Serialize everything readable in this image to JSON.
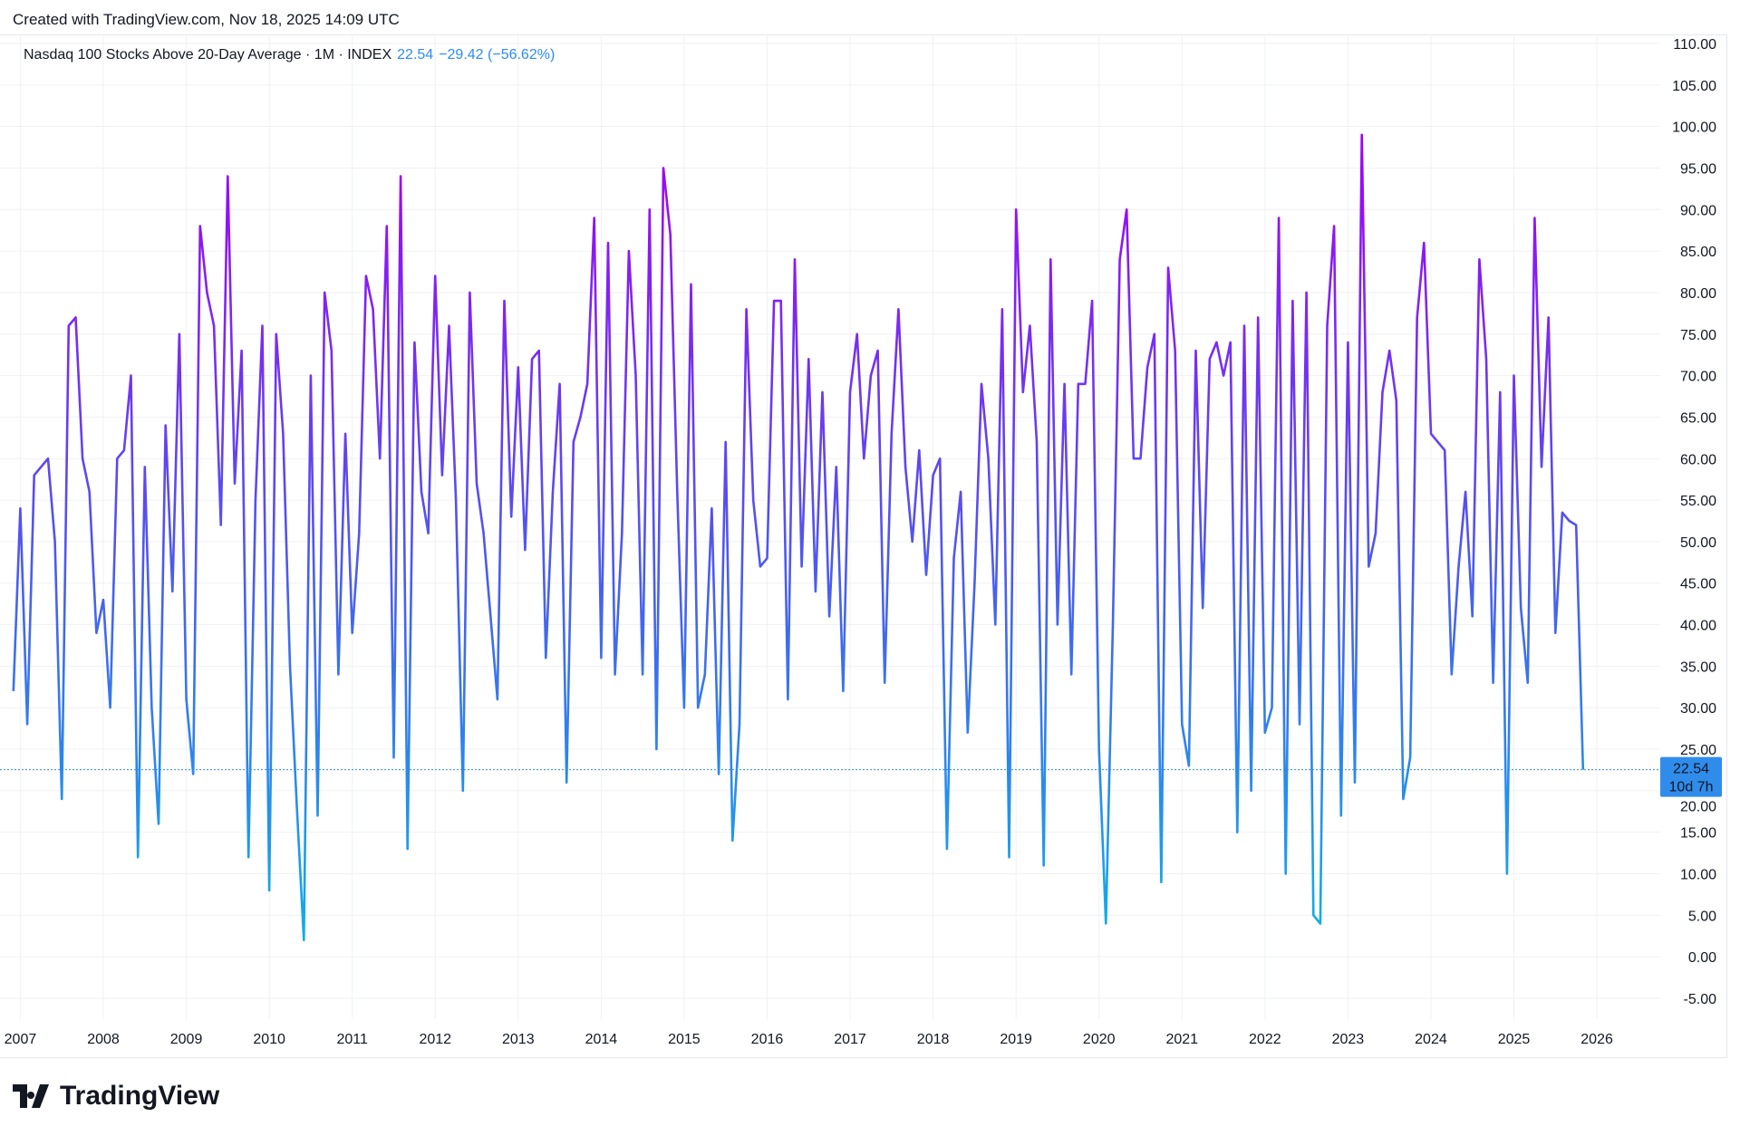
{
  "header": {
    "created": "Created with TradingView.com, Nov 18, 2025 14:09 UTC"
  },
  "legend": {
    "title": "Nasdaq 100 Stocks Above 20-Day Average · 1M · INDEX",
    "last": "22.54",
    "change": "−29.42 (−56.62%)"
  },
  "price_label": {
    "value": "22.54",
    "countdown": "10d 7h"
  },
  "logo": {
    "text": "TradingView"
  },
  "colors": {
    "top": "#a300f5",
    "mid": "#4a5cf0",
    "bottom": "#0fb0e8",
    "label_bg": "#2f8ceb",
    "grid": "#f0f1f4"
  },
  "chart_data": {
    "type": "line",
    "title": "Nasdaq 100 Stocks Above 20-Day Average · 1M · INDEX",
    "xlabel": "",
    "ylabel": "",
    "start_month": "2006-12",
    "interval": "1M",
    "ylim": [
      -5,
      110
    ],
    "yticks": [
      "-5.00",
      "0.00",
      "5.00",
      "10.00",
      "15.00",
      "20.00",
      "25.00",
      "30.00",
      "35.00",
      "40.00",
      "45.00",
      "50.00",
      "55.00",
      "60.00",
      "65.00",
      "70.00",
      "75.00",
      "80.00",
      "85.00",
      "90.00",
      "95.00",
      "100.00",
      "105.00",
      "110.00"
    ],
    "xticks": [
      "2007",
      "2008",
      "2009",
      "2010",
      "2011",
      "2012",
      "2013",
      "2014",
      "2015",
      "2016",
      "2017",
      "2018",
      "2019",
      "2020",
      "2021",
      "2022",
      "2023",
      "2024",
      "2025",
      "2026"
    ],
    "grid": true,
    "values": [
      32,
      54,
      28,
      58,
      59,
      60,
      50,
      19,
      76,
      77,
      60,
      56,
      39,
      43,
      30,
      60,
      61,
      70,
      12,
      59,
      30,
      16,
      64,
      44,
      75,
      31,
      22,
      88,
      80,
      76,
      52,
      94,
      57,
      73,
      12,
      55,
      76,
      8,
      75,
      63,
      35,
      18,
      2,
      70,
      17,
      80,
      73,
      34,
      63,
      39,
      51,
      82,
      78,
      60,
      88,
      24,
      94,
      13,
      74,
      56,
      51,
      82,
      58,
      76,
      55,
      20,
      80,
      57,
      51,
      41,
      31,
      79,
      53,
      71,
      49,
      72,
      73,
      36,
      56,
      69,
      21,
      62,
      65,
      69,
      89,
      36,
      86,
      34,
      51,
      85,
      70,
      34,
      90,
      25,
      95,
      87,
      56,
      30,
      81,
      30,
      34,
      54,
      22,
      62,
      14,
      28,
      78,
      55,
      47,
      48,
      79,
      79,
      31,
      84,
      47,
      72,
      44,
      68,
      41,
      59,
      32,
      68,
      75,
      60,
      70,
      73,
      33,
      63,
      78,
      59,
      50,
      61,
      46,
      58,
      60,
      13,
      48,
      56,
      27,
      45,
      69,
      60,
      40,
      78,
      12,
      90,
      68,
      76,
      62,
      11,
      84,
      40,
      69,
      34,
      69,
      69,
      79,
      25,
      4,
      40,
      84,
      90,
      60,
      60,
      71,
      75,
      9,
      83,
      73,
      28,
      23,
      73,
      42,
      72,
      74,
      70,
      74,
      15,
      76,
      20,
      77,
      27,
      30,
      89,
      10,
      79,
      28,
      80,
      5,
      4,
      76,
      88,
      17,
      74,
      21,
      99,
      47,
      51,
      68,
      73,
      67,
      19,
      24,
      77,
      86,
      63,
      62,
      61,
      34,
      47,
      56,
      41,
      84,
      72,
      33,
      68,
      10,
      70,
      42,
      33,
      89,
      59,
      77,
      39,
      53.5,
      52.5,
      52,
      22.54
    ]
  }
}
